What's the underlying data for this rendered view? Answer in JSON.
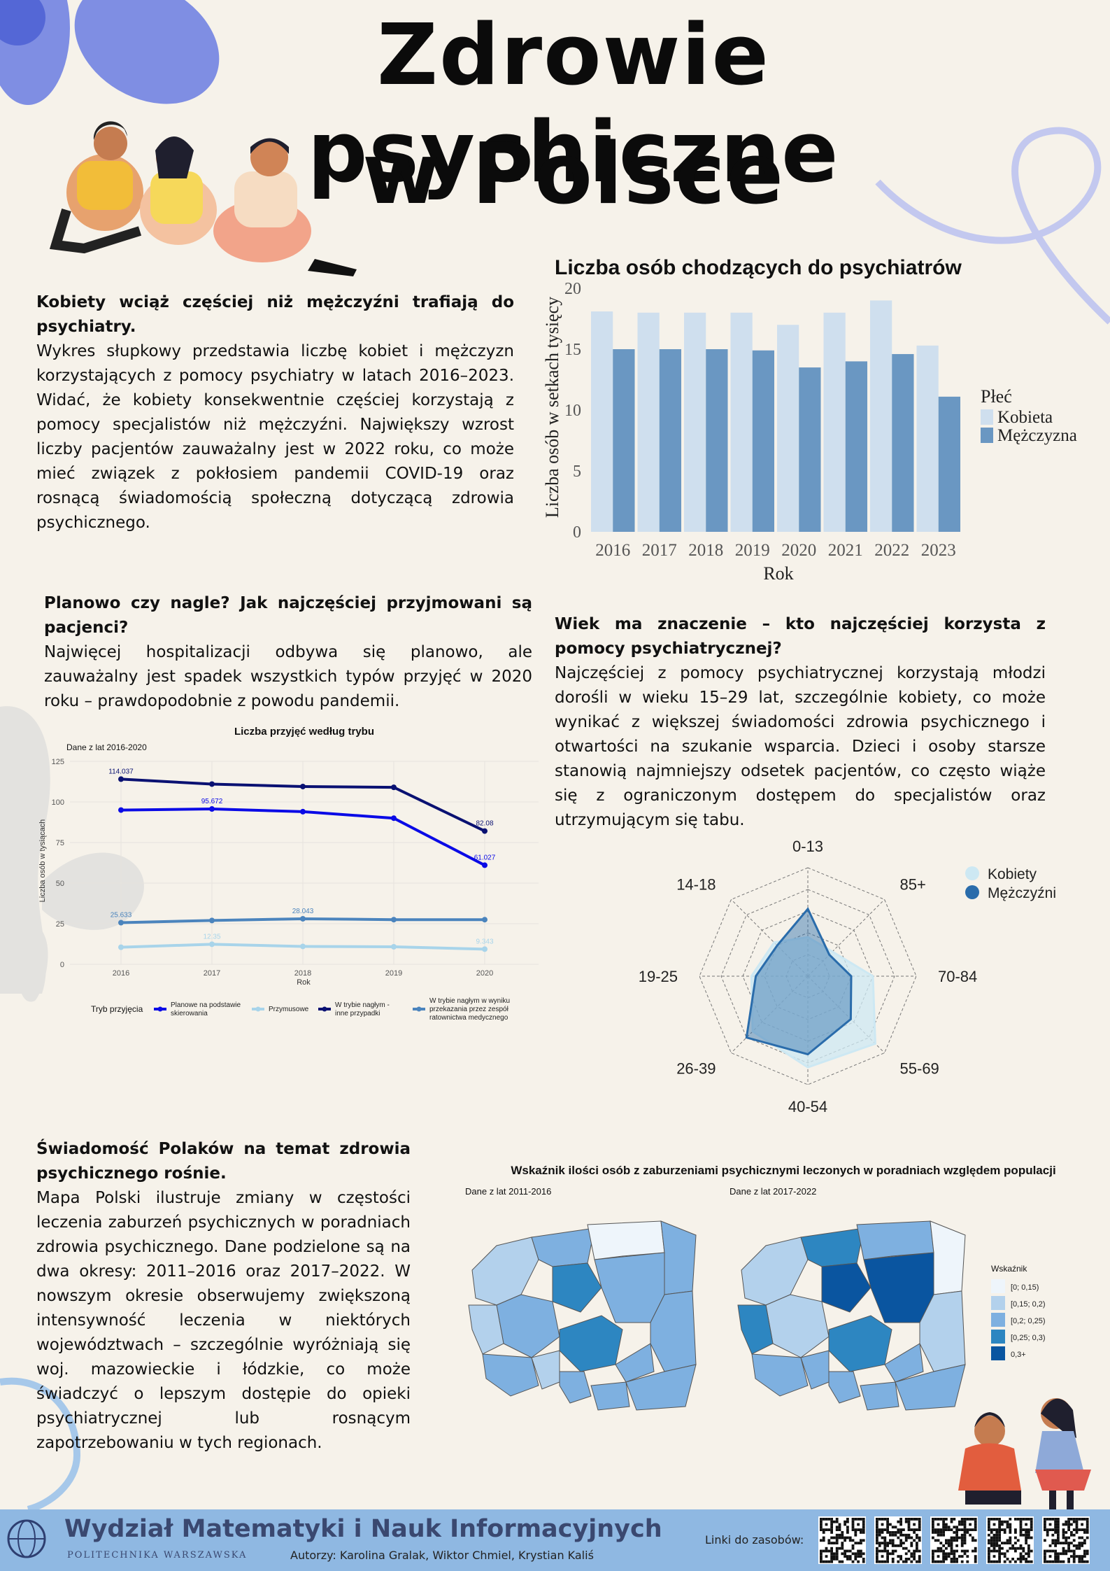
{
  "title": {
    "line1": "Zdrowie psychiczne",
    "line2": "w Polsce"
  },
  "section1": {
    "heading": "Kobiety wciąż częściej niż mężczyźni trafiają do psychiatry.",
    "body": "Wykres słupkowy przedstawia liczbę kobiet i mężczyzn korzystających z pomocy psychiatry w latach 2016–2023. Widać, że kobiety konsekwentnie częściej korzystają z pomocy specjalistów niż mężczyźni. Największy wzrost liczby pacjentów zauważalny jest w 2022 roku, co może mieć związek z pokłosiem pandemii COVID-19 oraz rosnącą świadomością społeczną dotyczącą zdrowia psychicznego."
  },
  "section2": {
    "heading": "Planowo czy nagle? Jak najczęściej przyjmowani są pacjenci?",
    "body": "Najwięcej hospitalizacji odbywa się planowo, ale zauważalny jest spadek wszystkich typów przyjęć w 2020 roku – prawdopodobnie z powodu pandemii."
  },
  "section3": {
    "heading": "Wiek ma znaczenie – kto najczęściej korzysta z pomocy psychiatrycznej?",
    "body": "Najczęściej z pomocy psychiatrycznej korzystają młodzi dorośli w wieku 15–29 lat, szczególnie kobiety, co może wynikać z większej świadomości zdrowia psychicznego i otwartości na szukanie wsparcia. Dzieci i osoby starsze stanowią najmniejszy odsetek pacjentów, co często wiąże się z ograniczonym dostępem do specjalistów oraz utrzymującym się tabu."
  },
  "section4": {
    "heading": "Świadomość Polaków na temat zdrowia psychicznego rośnie.",
    "body": "Mapa Polski ilustruje zmiany w częstości leczenia zaburzeń psychicznych w poradniach zdrowia psychicznego. Dane podzielone są na dwa okresy: 2011–2016 oraz 2017–2022. W nowszym okresie obserwujemy zwiększoną intensywność leczenia w niektórych województwach – szczególnie wyróżniają się woj. mazowieckie i łódzkie, co może świadczyć o lepszym dostępie do opieki psychiatrycznej lub rosnącym zapotrzebowaniu w tych regionach."
  },
  "chart_data": [
    {
      "type": "bar",
      "title": "Liczba osób chodzących do psychiatrów",
      "xlabel": "Rok",
      "ylabel": "Liczba osób w setkach tysięcy",
      "ylim": [
        0,
        20
      ],
      "yticks": [
        "0",
        "5",
        "10",
        "15",
        "20"
      ],
      "categories": [
        "2016",
        "2017",
        "2018",
        "2019",
        "2020",
        "2021",
        "2022",
        "2023"
      ],
      "legend_title": "Płeć",
      "legend_position": "right",
      "series": [
        {
          "name": "Kobieta",
          "color": "#cfdfee",
          "values": [
            18.1,
            18.0,
            18.0,
            18.0,
            17.0,
            18.0,
            19.0,
            15.3
          ]
        },
        {
          "name": "Mężczyzna",
          "color": "#6a97c2",
          "values": [
            15.0,
            15.0,
            15.0,
            14.9,
            13.5,
            14.0,
            14.6,
            11.1
          ]
        }
      ]
    },
    {
      "type": "line",
      "title": "Liczba przyjęć według trybu",
      "subtitle": "Dane z lat 2016-2020",
      "xlabel": "Rok",
      "ylabel": "Liczba osób w tysiącach",
      "ylim": [
        0,
        125
      ],
      "yticks": [
        "0",
        "25",
        "50",
        "75",
        "100",
        "125"
      ],
      "x": [
        "2016",
        "2017",
        "2018",
        "2019",
        "2020"
      ],
      "legend_title": "Tryb przyjęcia",
      "legend_position": "bottom",
      "series": [
        {
          "name": "Planowe na podstawie skierowania",
          "color": "#0a0ae6",
          "values": [
            95.0,
            95.672,
            94.0,
            90.0,
            61.027
          ],
          "labels": [
            null,
            "95.672",
            null,
            null,
            "61.027"
          ]
        },
        {
          "name": "Przymusowe",
          "color": "#a8d4ea",
          "values": [
            10.5,
            12.35,
            11.0,
            10.8,
            9.343
          ],
          "labels": [
            null,
            "12.35",
            null,
            null,
            "9.343"
          ]
        },
        {
          "name": "W trybie nagłym - inne przypadki",
          "color": "#0a1172",
          "values": [
            114.037,
            111.0,
            109.5,
            109.0,
            82.08
          ],
          "labels": [
            "114.037",
            null,
            null,
            null,
            "82.08"
          ]
        },
        {
          "name": "W trybie nagłym w wyniku przekazania przez zespół ratownictwa medycznego",
          "color": "#4b84bd",
          "values": [
            25.633,
            27.0,
            28.043,
            27.5,
            27.5
          ],
          "labels": [
            "25.633",
            null,
            "28.043",
            null,
            null
          ]
        }
      ]
    },
    {
      "type": "radar",
      "axes": [
        "0-13",
        "85+",
        "70-84",
        "55-69",
        "40-54",
        "26-39",
        "19-25",
        "14-18"
      ],
      "legend_position": "top-right",
      "series": [
        {
          "name": "Kobiety",
          "color": "#cde8f3",
          "values": [
            1.8,
            1.6,
            3.0,
            4.4,
            4.2,
            3.6,
            2.6,
            2.2
          ]
        },
        {
          "name": "Mężczyźni",
          "color": "#2a6cab",
          "values": [
            3.1,
            1.4,
            2.0,
            2.8,
            3.6,
            4.0,
            2.4,
            2.0
          ]
        }
      ]
    },
    {
      "type": "heatmap",
      "title": "Wskaźnik ilości osób z zaburzeniami psychicznymi leczonych w poradniach względem populacji",
      "panels": [
        "Dane z lat 2011-2016",
        "Dane z lat 2017-2022"
      ],
      "legend_title": "Wskaźnik",
      "legend_position": "right",
      "legend": [
        {
          "label": "[0; 0,15)",
          "color": "#eef5fb"
        },
        {
          "label": "[0,15; 0,2)",
          "color": "#b3d1ec"
        },
        {
          "label": "[0,2; 0,25)",
          "color": "#7eb0e0"
        },
        {
          "label": "[0,25; 0,3)",
          "color": "#2d86c1"
        },
        {
          "label": "0,3+",
          "color": "#0a55a0"
        }
      ]
    }
  ],
  "footer": {
    "faculty": "Wydział Matematyki i Nauk Informacyjnych",
    "university": "POLITECHNIKA WARSZAWSKA",
    "authors": "Autorzy: Karolina Gralak, Wiktor Chmiel, Krystian Kaliś",
    "links_label": "Linki do zasobów:"
  }
}
